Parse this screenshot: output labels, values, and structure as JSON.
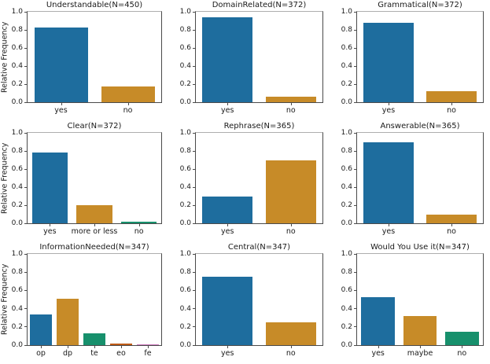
{
  "figure": {
    "background": "#ffffff",
    "ylabel": "Relative Frequency",
    "ytick_labels": [
      "0.0",
      "0.2",
      "0.4",
      "0.6",
      "0.8",
      "1.0"
    ],
    "palette": [
      "#1e6d9e",
      "#c78b28",
      "#17906c",
      "#bf5b16",
      "#cc78bc"
    ],
    "grid": false,
    "legend": "none"
  },
  "chart_data": [
    {
      "type": "bar",
      "title": "Understandable(N=450)",
      "categories": [
        "yes",
        "no"
      ],
      "values": [
        0.83,
        0.17
      ],
      "xlabel": "",
      "ylabel": "Relative Frequency",
      "ylim": [
        0,
        1
      ]
    },
    {
      "type": "bar",
      "title": "DomainRelated(N=372)",
      "categories": [
        "yes",
        "no"
      ],
      "values": [
        0.94,
        0.06
      ],
      "xlabel": "",
      "ylabel": "",
      "ylim": [
        0,
        1
      ]
    },
    {
      "type": "bar",
      "title": "Grammatical(N=372)",
      "categories": [
        "yes",
        "no"
      ],
      "values": [
        0.88,
        0.12
      ],
      "xlabel": "",
      "ylabel": "",
      "ylim": [
        0,
        1
      ]
    },
    {
      "type": "bar",
      "title": "Clear(N=372)",
      "categories": [
        "yes",
        "more or less",
        "no"
      ],
      "values": [
        0.78,
        0.2,
        0.02
      ],
      "xlabel": "",
      "ylabel": "Relative Frequency",
      "ylim": [
        0,
        1
      ]
    },
    {
      "type": "bar",
      "title": "Rephrase(N=365)",
      "categories": [
        "yes",
        "no"
      ],
      "values": [
        0.3,
        0.7
      ],
      "xlabel": "",
      "ylabel": "",
      "ylim": [
        0,
        1
      ]
    },
    {
      "type": "bar",
      "title": "Answerable(N=365)",
      "categories": [
        "yes",
        "no"
      ],
      "values": [
        0.9,
        0.1
      ],
      "xlabel": "",
      "ylabel": "",
      "ylim": [
        0,
        1
      ]
    },
    {
      "type": "bar",
      "title": "InformationNeeded(N=347)",
      "categories": [
        "op",
        "dp",
        "te",
        "eo",
        "fe"
      ],
      "values": [
        0.34,
        0.51,
        0.13,
        0.02,
        0.005
      ],
      "xlabel": "",
      "ylabel": "Relative Frequency",
      "ylim": [
        0,
        1
      ]
    },
    {
      "type": "bar",
      "title": "Central(N=347)",
      "categories": [
        "yes",
        "no"
      ],
      "values": [
        0.75,
        0.25
      ],
      "xlabel": "",
      "ylabel": "",
      "ylim": [
        0,
        1
      ]
    },
    {
      "type": "bar",
      "title": "Would You Use it(N=347)",
      "categories": [
        "yes",
        "maybe",
        "no"
      ],
      "values": [
        0.53,
        0.32,
        0.15
      ],
      "xlabel": "",
      "ylabel": "",
      "ylim": [
        0,
        1
      ]
    }
  ]
}
